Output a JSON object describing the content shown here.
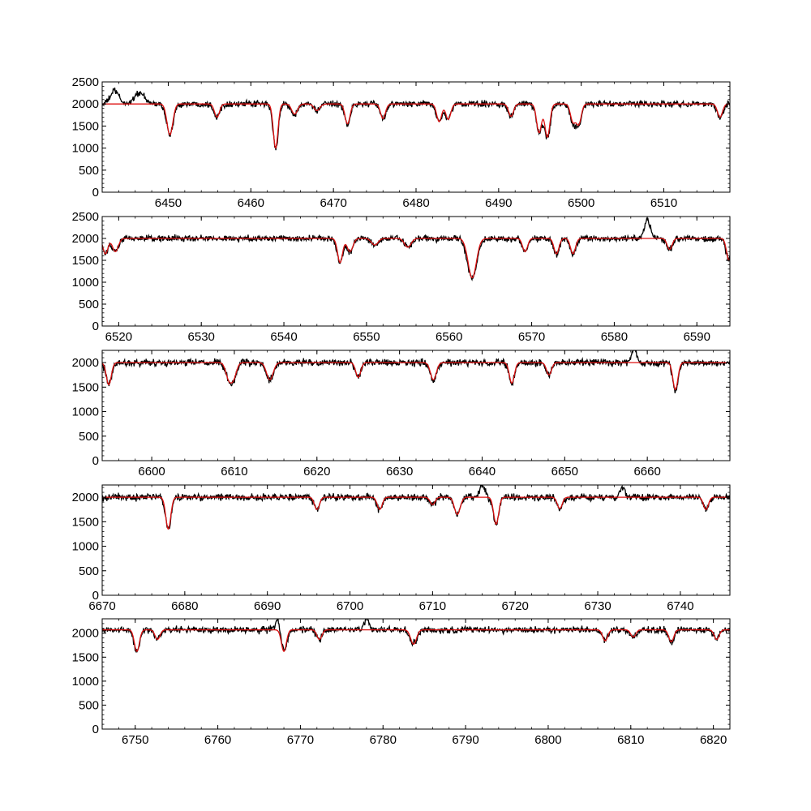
{
  "figure": {
    "colors": {
      "observed": "#000000",
      "model": "#dd1111",
      "axes": "#000000",
      "background": "#ffffff"
    }
  },
  "chart_data": [
    {
      "type": "line",
      "xlim": [
        6442,
        6518
      ],
      "ylim": [
        0,
        2500
      ],
      "xticks": [
        6450,
        6460,
        6470,
        6480,
        6490,
        6500,
        6510
      ],
      "yticks": [
        0,
        500,
        1000,
        1500,
        2000,
        2500
      ],
      "continuum": 2000,
      "grid": false,
      "series": [
        {
          "id": "observed",
          "color": "#000000"
        },
        {
          "id": "model",
          "color": "#dd1111"
        }
      ],
      "absorption_lines": [
        [
          6450.2,
          700,
          0.35
        ],
        [
          6455.9,
          300,
          0.3
        ],
        [
          6463.0,
          1000,
          0.28
        ],
        [
          6465.3,
          230,
          0.35
        ],
        [
          6468.0,
          150,
          0.35
        ],
        [
          6471.7,
          450,
          0.3
        ],
        [
          6476.0,
          330,
          0.3
        ],
        [
          6482.8,
          400,
          0.3
        ],
        [
          6483.9,
          350,
          0.3
        ],
        [
          6491.5,
          280,
          0.3
        ],
        [
          6494.9,
          650,
          0.3
        ],
        [
          6495.9,
          750,
          0.3
        ],
        [
          6499.0,
          400,
          0.3
        ],
        [
          6499.7,
          450,
          0.3
        ],
        [
          6516.8,
          300,
          0.3
        ]
      ],
      "emission_features": [
        [
          6443.5,
          300,
          0.5
        ],
        [
          6446.5,
          250,
          0.6
        ]
      ]
    },
    {
      "type": "line",
      "xlim": [
        6518,
        6594
      ],
      "ylim": [
        0,
        2500
      ],
      "xticks": [
        6520,
        6530,
        6540,
        6550,
        6560,
        6570,
        6580,
        6590
      ],
      "yticks": [
        0,
        500,
        1000,
        1500,
        2000,
        2500
      ],
      "continuum": 2000,
      "grid": false,
      "series": [
        {
          "id": "observed",
          "color": "#000000"
        },
        {
          "id": "model",
          "color": "#dd1111"
        }
      ],
      "absorption_lines": [
        [
          6518.4,
          350,
          0.3
        ],
        [
          6519.6,
          300,
          0.35
        ],
        [
          6546.8,
          550,
          0.3
        ],
        [
          6548.0,
          300,
          0.35
        ],
        [
          6551.0,
          150,
          0.4
        ],
        [
          6555.0,
          200,
          0.4
        ],
        [
          6562.8,
          900,
          0.5
        ],
        [
          6569.2,
          300,
          0.3
        ],
        [
          6573.0,
          350,
          0.3
        ],
        [
          6575.0,
          350,
          0.3
        ],
        [
          6586.7,
          250,
          0.3
        ],
        [
          6593.9,
          500,
          0.3
        ]
      ],
      "emission_features": [
        [
          6584.0,
          450,
          0.35
        ]
      ]
    },
    {
      "type": "line",
      "xlim": [
        6594,
        6670
      ],
      "ylim": [
        0,
        2250
      ],
      "xticks": [
        6600,
        6610,
        6620,
        6630,
        6640,
        6650,
        6660
      ],
      "yticks": [
        0,
        500,
        1000,
        1500,
        2000
      ],
      "continuum": 2000,
      "grid": false,
      "series": [
        {
          "id": "observed",
          "color": "#000000"
        },
        {
          "id": "model",
          "color": "#dd1111"
        }
      ],
      "absorption_lines": [
        [
          6594.8,
          450,
          0.3
        ],
        [
          6609.3,
          300,
          0.35
        ],
        [
          6609.9,
          300,
          0.35
        ],
        [
          6614.3,
          350,
          0.4
        ],
        [
          6625.0,
          300,
          0.3
        ],
        [
          6634.1,
          350,
          0.35
        ],
        [
          6643.6,
          420,
          0.3
        ],
        [
          6648.1,
          250,
          0.3
        ],
        [
          6663.4,
          550,
          0.3
        ]
      ],
      "emission_features": [
        [
          6658.4,
          300,
          0.3
        ]
      ]
    },
    {
      "type": "line",
      "xlim": [
        6670,
        6746
      ],
      "ylim": [
        0,
        2250
      ],
      "xticks": [
        6670,
        6680,
        6690,
        6700,
        6710,
        6720,
        6730,
        6740
      ],
      "yticks": [
        0,
        500,
        1000,
        1500,
        2000
      ],
      "continuum": 2000,
      "grid": false,
      "series": [
        {
          "id": "observed",
          "color": "#000000"
        },
        {
          "id": "model",
          "color": "#dd1111"
        }
      ],
      "absorption_lines": [
        [
          6678.0,
          650,
          0.3
        ],
        [
          6696.0,
          250,
          0.3
        ],
        [
          6703.6,
          250,
          0.3
        ],
        [
          6710.0,
          150,
          0.3
        ],
        [
          6713.0,
          350,
          0.35
        ],
        [
          6717.7,
          550,
          0.3
        ],
        [
          6725.4,
          230,
          0.3
        ],
        [
          6743.1,
          250,
          0.3
        ]
      ],
      "emission_features": [
        [
          6716.0,
          250,
          0.3
        ],
        [
          6733.0,
          200,
          0.3
        ]
      ]
    },
    {
      "type": "line",
      "xlim": [
        6746,
        6822
      ],
      "ylim": [
        0,
        2300
      ],
      "xticks": [
        6750,
        6760,
        6770,
        6780,
        6790,
        6800,
        6810,
        6820
      ],
      "yticks": [
        0,
        500,
        1000,
        1500,
        2000
      ],
      "continuum": 2070,
      "grid": false,
      "series": [
        {
          "id": "observed",
          "color": "#000000"
        },
        {
          "id": "model",
          "color": "#dd1111"
        }
      ],
      "absorption_lines": [
        [
          6750.2,
          450,
          0.3
        ],
        [
          6752.7,
          200,
          0.3
        ],
        [
          6768.0,
          450,
          0.3
        ],
        [
          6772.3,
          200,
          0.3
        ],
        [
          6783.7,
          300,
          0.35
        ],
        [
          6806.9,
          230,
          0.3
        ],
        [
          6810.3,
          150,
          0.3
        ],
        [
          6814.9,
          250,
          0.3
        ],
        [
          6820.4,
          200,
          0.3
        ]
      ],
      "emission_features": [
        [
          6767.3,
          250,
          0.3
        ],
        [
          6778.0,
          230,
          0.3
        ]
      ]
    }
  ]
}
